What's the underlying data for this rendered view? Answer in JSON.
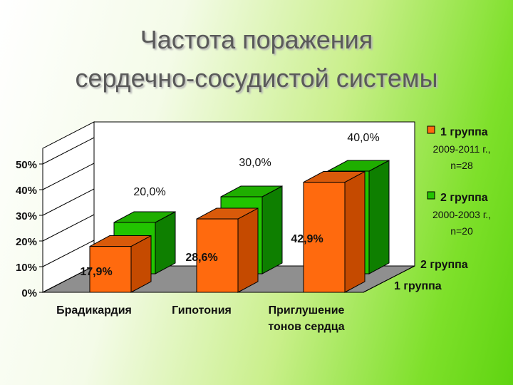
{
  "title": {
    "line1": "Частота поражения",
    "line2": "сердечно-сосудистой системы"
  },
  "colors": {
    "group1_front": "#ff6a0e",
    "group1_side": "#c54a00",
    "group1_top": "#d95a0a",
    "group2_front": "#22c400",
    "group2_side": "#0e7f00",
    "group2_top": "#1fae00",
    "wall": "#ffffff",
    "floor": "#8f8f8f"
  },
  "chart_data": {
    "type": "bar",
    "subtype": "3d-clustered-depth",
    "categories": [
      "Брадикардия",
      "Гипотония",
      "Приглушение\nтонов сердца"
    ],
    "ytick_labels": [
      "0%",
      "10%",
      "20%",
      "30%",
      "40%",
      "50%"
    ],
    "ylim": [
      0,
      50
    ],
    "depth_labels": [
      "2 группа",
      "1 группа"
    ],
    "series": [
      {
        "name": "1 группа",
        "values": [
          17.9,
          28.6,
          42.9
        ],
        "labels": [
          "17,9%",
          "28,6%",
          "42,9%"
        ]
      },
      {
        "name": "2 группа",
        "values": [
          20.0,
          30.0,
          40.0
        ],
        "labels": [
          "20,0%",
          "30,0%",
          "40,0%"
        ]
      }
    ],
    "legend": {
      "position": "right",
      "entries": [
        {
          "line1": "1 группа",
          "line2": "2009-2011 г.,",
          "line3": "n=28"
        },
        {
          "line1": "2 группа",
          "line2": "2000-2003 г.,",
          "line3": "n=20"
        }
      ]
    }
  }
}
